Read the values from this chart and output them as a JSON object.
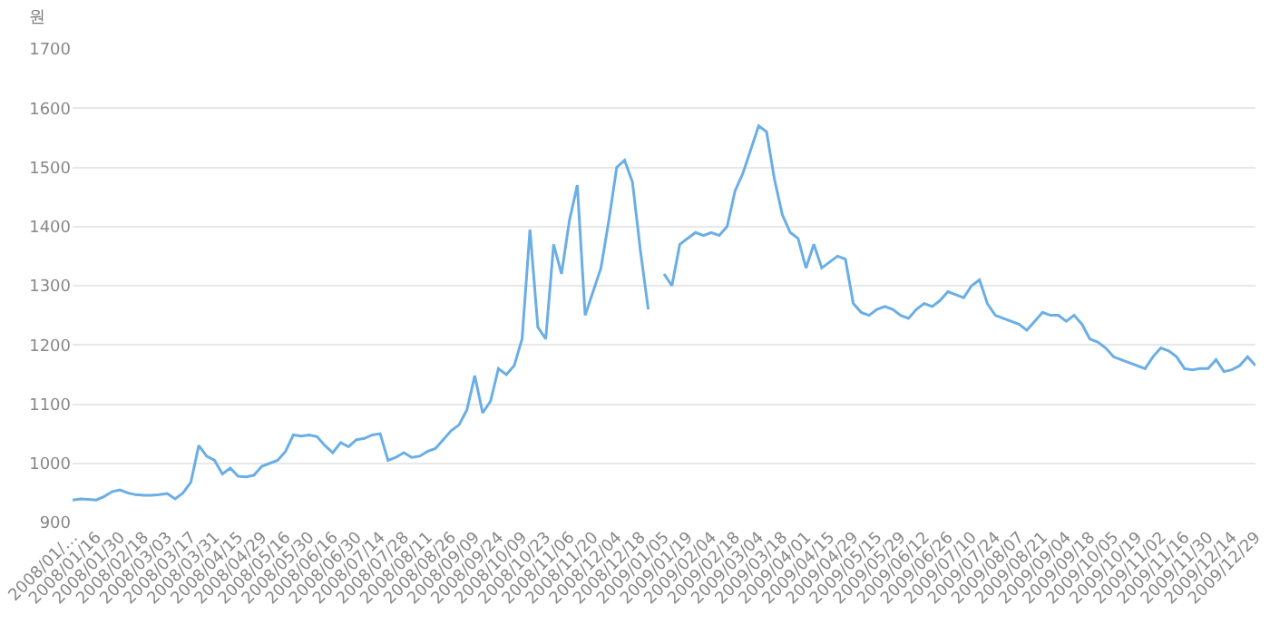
{
  "chart_data": {
    "type": "line",
    "ylabel": "원",
    "categories": [
      "2008/01/…",
      null,
      null,
      "2008/01/16",
      null,
      null,
      "2008/01/30",
      null,
      null,
      "2008/02/18",
      null,
      null,
      "2008/03/03",
      null,
      null,
      "2008/03/17",
      null,
      null,
      "2008/03/31",
      null,
      null,
      "2008/04/15",
      null,
      null,
      "2008/04/29",
      null,
      null,
      "2008/05/16",
      null,
      null,
      "2008/05/30",
      null,
      null,
      "2008/06/16",
      null,
      null,
      "2008/06/30",
      null,
      null,
      "2008/07/14",
      null,
      null,
      "2008/07/28",
      null,
      null,
      "2008/08/11",
      null,
      null,
      "2008/08/26",
      null,
      null,
      "2008/09/09",
      null,
      null,
      "2008/09/24",
      null,
      null,
      "2008/10/09",
      null,
      null,
      "2008/10/23",
      null,
      null,
      "2008/11/06",
      null,
      null,
      "2008/11/20",
      null,
      null,
      "2008/12/04",
      null,
      null,
      "2008/12/18",
      null,
      null,
      "2009/01/05",
      null,
      null,
      "2009/01/19",
      null,
      null,
      "2009/02/04",
      null,
      null,
      "2009/02/18",
      null,
      null,
      "2009/03/04",
      null,
      null,
      "2009/03/18",
      null,
      null,
      "2009/04/01",
      null,
      null,
      "2009/04/15",
      null,
      null,
      "2009/04/29",
      null,
      null,
      "2009/05/15",
      null,
      null,
      "2009/05/29",
      null,
      null,
      "2009/06/12",
      null,
      null,
      "2009/06/26",
      null,
      null,
      "2009/07/10",
      null,
      null,
      "2009/07/24",
      null,
      null,
      "2009/08/07",
      null,
      null,
      "2009/08/21",
      null,
      null,
      "2009/09/04",
      null,
      null,
      "2009/09/18",
      null,
      null,
      "2009/10/05",
      null,
      null,
      "2009/10/19",
      null,
      null,
      "2009/11/02",
      null,
      null,
      "2009/11/16",
      null,
      null,
      "2009/11/30",
      null,
      null,
      "2009/12/14",
      null,
      null,
      "2009/12/29"
    ],
    "series": [
      {
        "color": "#6aaee6",
        "values": [
          938,
          940,
          939,
          938,
          944,
          952,
          955,
          950,
          947,
          946,
          946,
          947,
          949,
          940,
          950,
          968,
          1030,
          1012,
          1005,
          982,
          992,
          978,
          977,
          980,
          995,
          1000,
          1005,
          1020,
          1048,
          1046,
          1048,
          1045,
          1030,
          1018,
          1035,
          1028,
          1040,
          1042,
          1048,
          1050,
          1005,
          1010,
          1018,
          1010,
          1012,
          1020,
          1025,
          1040,
          1055,
          1065,
          1090,
          1148,
          1085,
          1105,
          1160,
          1150,
          1165,
          1210,
          1395,
          1230,
          1210,
          1370,
          1320,
          1410,
          1470,
          1250,
          1290,
          1330,
          1410,
          1500,
          1512,
          1475,
          1360,
          1260,
          null,
          1320,
          1300,
          1370,
          1380,
          1390,
          1385,
          1390,
          1385,
          1400,
          1460,
          1490,
          1530,
          1570,
          1560,
          1480,
          1420,
          1390,
          1380,
          1330,
          1370,
          1330,
          1340,
          1350,
          1345,
          1270,
          1255,
          1250,
          1260,
          1265,
          1260,
          1250,
          1245,
          1260,
          1270,
          1265,
          1275,
          1290,
          1285,
          1280,
          1300,
          1310,
          1270,
          1250,
          1245,
          1240,
          1235,
          1225,
          1240,
          1255,
          1250,
          1250,
          1240,
          1250,
          1235,
          1210,
          1205,
          1195,
          1180,
          1175,
          1170,
          1165,
          1160,
          1180,
          1195,
          1190,
          1180,
          1160,
          1158,
          1160,
          1160,
          1175,
          1155,
          1158,
          1165,
          1180,
          1165
        ]
      }
    ],
    "ylim": [
      900,
      1700
    ],
    "yticks": [
      900,
      1000,
      1100,
      1200,
      1300,
      1400,
      1500,
      1600,
      1700
    ],
    "grid": "y",
    "marker": "none",
    "line_style": "solid"
  }
}
